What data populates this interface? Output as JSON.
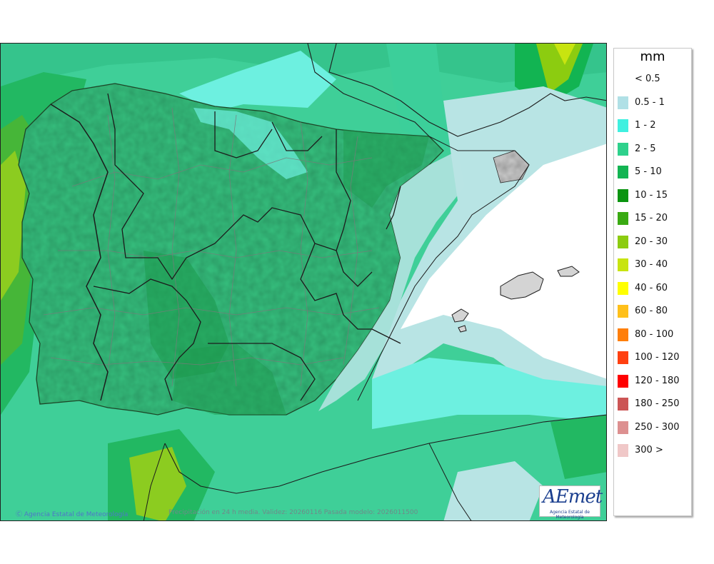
{
  "legend": {
    "title": "mm",
    "entries": [
      {
        "label": "< 0.5",
        "color": "#ffffff"
      },
      {
        "label": "0.5 - 1",
        "color": "#b0e0e6"
      },
      {
        "label": "1 - 2",
        "color": "#3ff0e0"
      },
      {
        "label": "2 - 5",
        "color": "#2ed18c"
      },
      {
        "label": "5 - 10",
        "color": "#12b452"
      },
      {
        "label": "10 - 15",
        "color": "#0a9410"
      },
      {
        "label": "15 - 20",
        "color": "#3aaa12"
      },
      {
        "label": "20 - 30",
        "color": "#8ccc10"
      },
      {
        "label": "30 - 40",
        "color": "#c8e410"
      },
      {
        "label": "40 - 60",
        "color": "#ffff00"
      },
      {
        "label": "60 - 80",
        "color": "#ffc01a"
      },
      {
        "label": "80 - 100",
        "color": "#ff7f0a"
      },
      {
        "label": "100 - 120",
        "color": "#ff4010"
      },
      {
        "label": "120 - 180",
        "color": "#ff0000"
      },
      {
        "label": "180 - 250",
        "color": "#cc5555"
      },
      {
        "label": "250 - 300",
        "color": "#dd9090"
      },
      {
        "label": "300 >",
        "color": "#f0c8c8"
      }
    ]
  },
  "footer": {
    "credit": "Agencia Estatal de Meteorología",
    "caption": "Precipitación en 24 h media. Validez: 20260116 Pasada modelo: 2026011500"
  },
  "logo": {
    "text": "AEmet",
    "caption": "Agencia Estatal de Meteorología"
  }
}
